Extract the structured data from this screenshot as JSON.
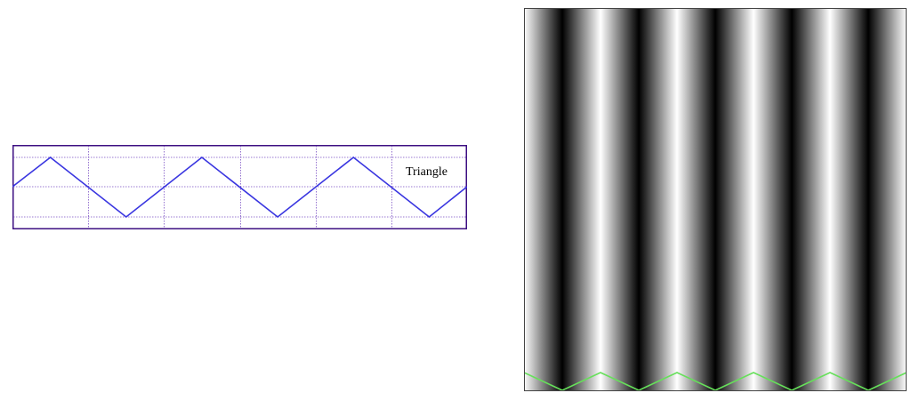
{
  "wave_panel": {
    "label": "Triangle",
    "colors": {
      "frame": "#3d0f82",
      "grid": "#7a4fc4",
      "wave": "#3a36e0"
    },
    "wave": {
      "shape": "triangle",
      "cycles": 3
    }
  },
  "gradient_panel": {
    "colors": {
      "frame": "#444444",
      "overlay_wave": "#66e05a",
      "dark": "#000000",
      "light": "#ffffff"
    },
    "stripes": {
      "shape": "triangle",
      "cycles": 5
    },
    "overlay_wave": {
      "shape": "triangle",
      "cycles": 5
    }
  }
}
